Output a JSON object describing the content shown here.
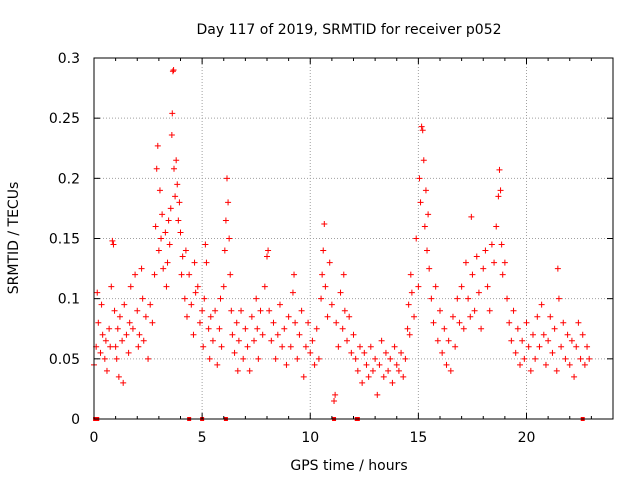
{
  "chart_data": {
    "type": "scatter",
    "title": "Day 117 of 2019, SRMTID for receiver p052",
    "xlabel": "GPS time / hours",
    "ylabel": "SRMTID / TECUs",
    "xlim": [
      0,
      24
    ],
    "ylim": [
      0,
      0.3
    ],
    "xticks": [
      0,
      5,
      10,
      15,
      20
    ],
    "yticks": [
      0,
      0.05,
      0.1,
      0.15,
      0.2,
      0.25,
      0.3
    ],
    "xtick_labels": [
      "0",
      "5",
      "10",
      "15",
      "20"
    ],
    "ytick_labels": [
      "0",
      "0.05",
      "0.1",
      "0.15",
      "0.2",
      "0.25",
      "0.3"
    ],
    "grid": true,
    "marker": "+",
    "color": "#ff0000",
    "zero_markers_x": [
      0.05,
      0.1,
      0.15,
      4.4,
      5.0,
      6.1,
      11.1,
      12.15,
      12.2,
      22.6
    ],
    "series": [
      {
        "name": "SRMTID",
        "points": [
          [
            0.0,
            0.045
          ],
          [
            0.1,
            0.06
          ],
          [
            0.15,
            0.105
          ],
          [
            0.2,
            0.08
          ],
          [
            0.3,
            0.055
          ],
          [
            0.35,
            0.095
          ],
          [
            0.4,
            0.07
          ],
          [
            0.5,
            0.05
          ],
          [
            0.55,
            0.065
          ],
          [
            0.6,
            0.04
          ],
          [
            0.7,
            0.075
          ],
          [
            0.75,
            0.06
          ],
          [
            0.8,
            0.11
          ],
          [
            0.85,
            0.148
          ],
          [
            0.9,
            0.145
          ],
          [
            0.95,
            0.09
          ],
          [
            1.0,
            0.06
          ],
          [
            1.05,
            0.05
          ],
          [
            1.1,
            0.075
          ],
          [
            1.15,
            0.035
          ],
          [
            1.2,
            0.085
          ],
          [
            1.3,
            0.065
          ],
          [
            1.35,
            0.03
          ],
          [
            1.4,
            0.095
          ],
          [
            1.5,
            0.07
          ],
          [
            1.6,
            0.055
          ],
          [
            1.65,
            0.08
          ],
          [
            1.7,
            0.11
          ],
          [
            1.8,
            0.075
          ],
          [
            1.9,
            0.12
          ],
          [
            2.0,
            0.09
          ],
          [
            2.05,
            0.06
          ],
          [
            2.1,
            0.07
          ],
          [
            2.2,
            0.125
          ],
          [
            2.25,
            0.1
          ],
          [
            2.3,
            0.065
          ],
          [
            2.4,
            0.085
          ],
          [
            2.5,
            0.05
          ],
          [
            2.6,
            0.095
          ],
          [
            2.7,
            0.08
          ],
          [
            2.8,
            0.12
          ],
          [
            2.85,
            0.16
          ],
          [
            2.9,
            0.208
          ],
          [
            2.95,
            0.227
          ],
          [
            3.0,
            0.14
          ],
          [
            3.05,
            0.19
          ],
          [
            3.1,
            0.15
          ],
          [
            3.15,
            0.17
          ],
          [
            3.2,
            0.125
          ],
          [
            3.3,
            0.155
          ],
          [
            3.35,
            0.11
          ],
          [
            3.4,
            0.13
          ],
          [
            3.45,
            0.165
          ],
          [
            3.5,
            0.145
          ],
          [
            3.55,
            0.175
          ],
          [
            3.6,
            0.236
          ],
          [
            3.62,
            0.254
          ],
          [
            3.65,
            0.289
          ],
          [
            3.68,
            0.29
          ],
          [
            3.7,
            0.208
          ],
          [
            3.75,
            0.185
          ],
          [
            3.8,
            0.215
          ],
          [
            3.85,
            0.195
          ],
          [
            3.9,
            0.165
          ],
          [
            3.95,
            0.18
          ],
          [
            4.0,
            0.155
          ],
          [
            4.05,
            0.12
          ],
          [
            4.1,
            0.135
          ],
          [
            4.2,
            0.1
          ],
          [
            4.25,
            0.14
          ],
          [
            4.3,
            0.085
          ],
          [
            4.4,
            0.12
          ],
          [
            4.5,
            0.095
          ],
          [
            4.6,
            0.07
          ],
          [
            4.65,
            0.13
          ],
          [
            4.7,
            0.105
          ],
          [
            4.8,
            0.11
          ],
          [
            4.9,
            0.08
          ],
          [
            5.0,
            0.09
          ],
          [
            5.05,
            0.06
          ],
          [
            5.1,
            0.1
          ],
          [
            5.15,
            0.145
          ],
          [
            5.2,
            0.13
          ],
          [
            5.3,
            0.075
          ],
          [
            5.35,
            0.05
          ],
          [
            5.4,
            0.085
          ],
          [
            5.5,
            0.065
          ],
          [
            5.6,
            0.09
          ],
          [
            5.7,
            0.045
          ],
          [
            5.8,
            0.075
          ],
          [
            5.85,
            0.1
          ],
          [
            5.9,
            0.06
          ],
          [
            6.0,
            0.11
          ],
          [
            6.05,
            0.14
          ],
          [
            6.1,
            0.165
          ],
          [
            6.15,
            0.2
          ],
          [
            6.2,
            0.18
          ],
          [
            6.25,
            0.15
          ],
          [
            6.3,
            0.12
          ],
          [
            6.35,
            0.09
          ],
          [
            6.4,
            0.07
          ],
          [
            6.5,
            0.055
          ],
          [
            6.6,
            0.08
          ],
          [
            6.65,
            0.04
          ],
          [
            6.7,
            0.065
          ],
          [
            6.8,
            0.09
          ],
          [
            6.9,
            0.05
          ],
          [
            7.0,
            0.075
          ],
          [
            7.1,
            0.06
          ],
          [
            7.2,
            0.04
          ],
          [
            7.3,
            0.085
          ],
          [
            7.4,
            0.065
          ],
          [
            7.5,
            0.1
          ],
          [
            7.55,
            0.075
          ],
          [
            7.6,
            0.05
          ],
          [
            7.7,
            0.09
          ],
          [
            7.8,
            0.07
          ],
          [
            7.9,
            0.11
          ],
          [
            8.0,
            0.135
          ],
          [
            8.05,
            0.14
          ],
          [
            8.1,
            0.09
          ],
          [
            8.2,
            0.065
          ],
          [
            8.3,
            0.08
          ],
          [
            8.4,
            0.05
          ],
          [
            8.5,
            0.07
          ],
          [
            8.6,
            0.095
          ],
          [
            8.7,
            0.06
          ],
          [
            8.8,
            0.075
          ],
          [
            8.9,
            0.045
          ],
          [
            9.0,
            0.085
          ],
          [
            9.1,
            0.06
          ],
          [
            9.2,
            0.105
          ],
          [
            9.25,
            0.12
          ],
          [
            9.3,
            0.08
          ],
          [
            9.4,
            0.05
          ],
          [
            9.5,
            0.07
          ],
          [
            9.6,
            0.09
          ],
          [
            9.7,
            0.035
          ],
          [
            9.8,
            0.06
          ],
          [
            9.9,
            0.08
          ],
          [
            10.0,
            0.055
          ],
          [
            10.1,
            0.065
          ],
          [
            10.2,
            0.045
          ],
          [
            10.3,
            0.075
          ],
          [
            10.4,
            0.05
          ],
          [
            10.5,
            0.1
          ],
          [
            10.55,
            0.12
          ],
          [
            10.6,
            0.14
          ],
          [
            10.65,
            0.162
          ],
          [
            10.7,
            0.11
          ],
          [
            10.8,
            0.085
          ],
          [
            10.9,
            0.13
          ],
          [
            11.0,
            0.095
          ],
          [
            11.1,
            0.015
          ],
          [
            11.15,
            0.02
          ],
          [
            11.2,
            0.08
          ],
          [
            11.3,
            0.06
          ],
          [
            11.4,
            0.105
          ],
          [
            11.5,
            0.075
          ],
          [
            11.55,
            0.12
          ],
          [
            11.6,
            0.09
          ],
          [
            11.7,
            0.065
          ],
          [
            11.8,
            0.085
          ],
          [
            11.9,
            0.055
          ],
          [
            12.0,
            0.07
          ],
          [
            12.1,
            0.05
          ],
          [
            12.2,
            0.04
          ],
          [
            12.3,
            0.06
          ],
          [
            12.4,
            0.03
          ],
          [
            12.5,
            0.055
          ],
          [
            12.6,
            0.045
          ],
          [
            12.7,
            0.035
          ],
          [
            12.8,
            0.06
          ],
          [
            12.9,
            0.04
          ],
          [
            13.0,
            0.05
          ],
          [
            13.1,
            0.02
          ],
          [
            13.2,
            0.045
          ],
          [
            13.3,
            0.065
          ],
          [
            13.4,
            0.035
          ],
          [
            13.5,
            0.055
          ],
          [
            13.6,
            0.04
          ],
          [
            13.7,
            0.05
          ],
          [
            13.8,
            0.03
          ],
          [
            13.9,
            0.06
          ],
          [
            14.0,
            0.045
          ],
          [
            14.1,
            0.04
          ],
          [
            14.2,
            0.055
          ],
          [
            14.3,
            0.035
          ],
          [
            14.4,
            0.05
          ],
          [
            14.5,
            0.075
          ],
          [
            14.55,
            0.095
          ],
          [
            14.6,
            0.07
          ],
          [
            14.65,
            0.12
          ],
          [
            14.7,
            0.105
          ],
          [
            14.8,
            0.085
          ],
          [
            14.9,
            0.15
          ],
          [
            15.0,
            0.11
          ],
          [
            15.05,
            0.2
          ],
          [
            15.1,
            0.18
          ],
          [
            15.15,
            0.243
          ],
          [
            15.2,
            0.24
          ],
          [
            15.25,
            0.215
          ],
          [
            15.3,
            0.16
          ],
          [
            15.35,
            0.19
          ],
          [
            15.4,
            0.14
          ],
          [
            15.45,
            0.17
          ],
          [
            15.5,
            0.125
          ],
          [
            15.6,
            0.1
          ],
          [
            15.7,
            0.08
          ],
          [
            15.8,
            0.11
          ],
          [
            15.9,
            0.065
          ],
          [
            16.0,
            0.09
          ],
          [
            16.1,
            0.055
          ],
          [
            16.2,
            0.075
          ],
          [
            16.3,
            0.045
          ],
          [
            16.4,
            0.065
          ],
          [
            16.5,
            0.04
          ],
          [
            16.6,
            0.085
          ],
          [
            16.7,
            0.06
          ],
          [
            16.8,
            0.1
          ],
          [
            16.9,
            0.08
          ],
          [
            17.0,
            0.11
          ],
          [
            17.1,
            0.075
          ],
          [
            17.2,
            0.13
          ],
          [
            17.3,
            0.1
          ],
          [
            17.4,
            0.085
          ],
          [
            17.45,
            0.168
          ],
          [
            17.5,
            0.12
          ],
          [
            17.6,
            0.09
          ],
          [
            17.7,
            0.135
          ],
          [
            17.8,
            0.105
          ],
          [
            17.9,
            0.075
          ],
          [
            18.0,
            0.125
          ],
          [
            18.1,
            0.14
          ],
          [
            18.2,
            0.11
          ],
          [
            18.3,
            0.09
          ],
          [
            18.4,
            0.145
          ],
          [
            18.5,
            0.13
          ],
          [
            18.6,
            0.16
          ],
          [
            18.7,
            0.185
          ],
          [
            18.75,
            0.207
          ],
          [
            18.8,
            0.19
          ],
          [
            18.85,
            0.145
          ],
          [
            18.9,
            0.12
          ],
          [
            19.0,
            0.13
          ],
          [
            19.1,
            0.1
          ],
          [
            19.2,
            0.08
          ],
          [
            19.3,
            0.065
          ],
          [
            19.4,
            0.09
          ],
          [
            19.5,
            0.055
          ],
          [
            19.6,
            0.075
          ],
          [
            19.7,
            0.045
          ],
          [
            19.8,
            0.065
          ],
          [
            19.9,
            0.05
          ],
          [
            20.0,
            0.08
          ],
          [
            20.1,
            0.06
          ],
          [
            20.2,
            0.04
          ],
          [
            20.3,
            0.07
          ],
          [
            20.4,
            0.05
          ],
          [
            20.5,
            0.085
          ],
          [
            20.6,
            0.06
          ],
          [
            20.7,
            0.095
          ],
          [
            20.8,
            0.07
          ],
          [
            20.9,
            0.045
          ],
          [
            21.0,
            0.065
          ],
          [
            21.1,
            0.085
          ],
          [
            21.2,
            0.055
          ],
          [
            21.3,
            0.075
          ],
          [
            21.4,
            0.04
          ],
          [
            21.45,
            0.125
          ],
          [
            21.5,
            0.1
          ],
          [
            21.6,
            0.06
          ],
          [
            21.7,
            0.08
          ],
          [
            21.8,
            0.05
          ],
          [
            21.9,
            0.07
          ],
          [
            22.0,
            0.045
          ],
          [
            22.1,
            0.065
          ],
          [
            22.2,
            0.035
          ],
          [
            22.3,
            0.06
          ],
          [
            22.4,
            0.08
          ],
          [
            22.5,
            0.05
          ],
          [
            22.6,
            0.07
          ],
          [
            22.7,
            0.045
          ],
          [
            22.8,
            0.06
          ],
          [
            22.9,
            0.05
          ]
        ]
      }
    ]
  }
}
